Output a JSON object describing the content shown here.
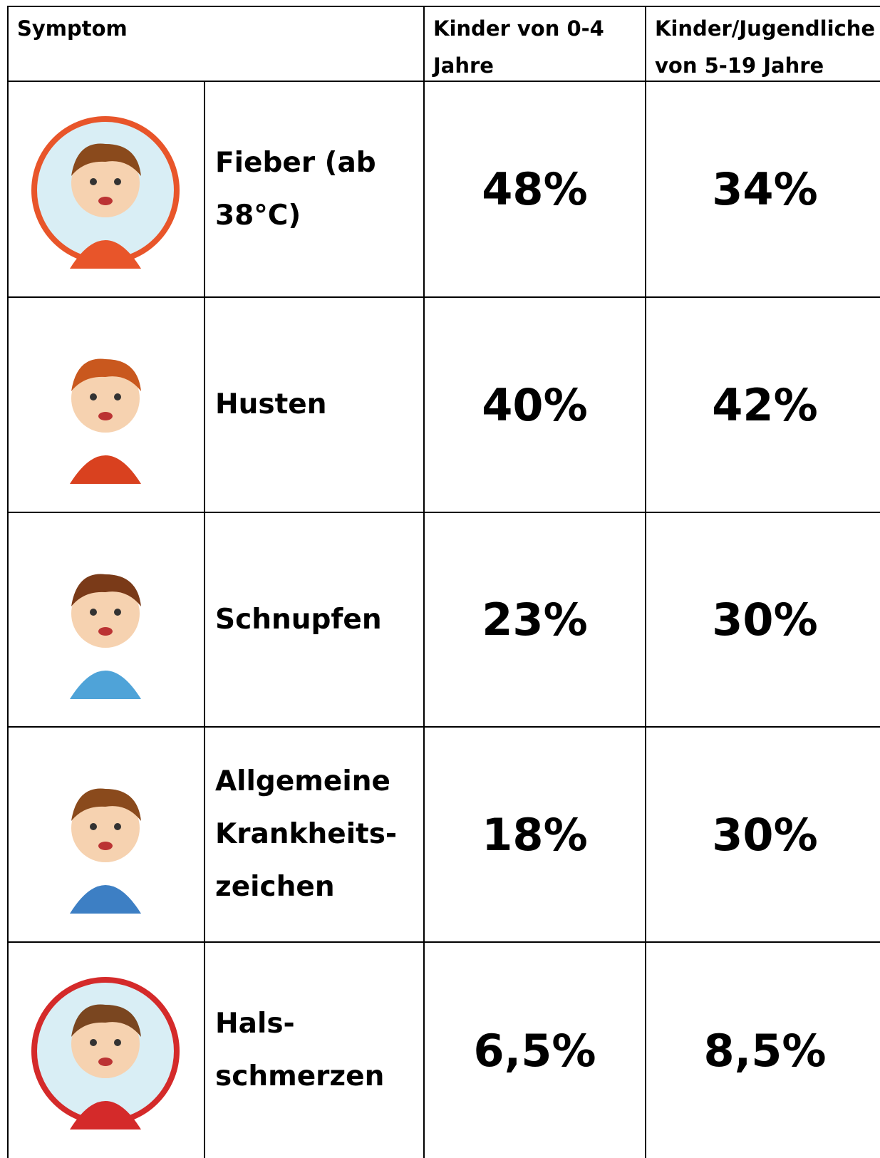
{
  "table": {
    "header": [
      "Symptom",
      "Kinder von 0-4 Jahre",
      "Kinder/Jugendliche von 5-19 Jahre"
    ],
    "rows": [
      {
        "symptom": [
          "Fieber (ab",
          "38°C)"
        ],
        "age_0_4": "48%",
        "age_5_19": "34%"
      },
      {
        "symptom": [
          "Husten"
        ],
        "age_0_4": "40%",
        "age_5_19": "42%"
      },
      {
        "symptom": [
          "Schnupfen"
        ],
        "age_0_4": "23%",
        "age_5_19": "30%"
      },
      {
        "symptom": [
          "Allgemeine",
          "Krankheits-",
          "zeichen"
        ],
        "age_0_4": "18%",
        "age_5_19": "30%"
      },
      {
        "symptom": [
          "Hals-",
          "schmerzen"
        ],
        "age_0_4": "6,5%",
        "age_5_19": "8,5%"
      }
    ]
  }
}
